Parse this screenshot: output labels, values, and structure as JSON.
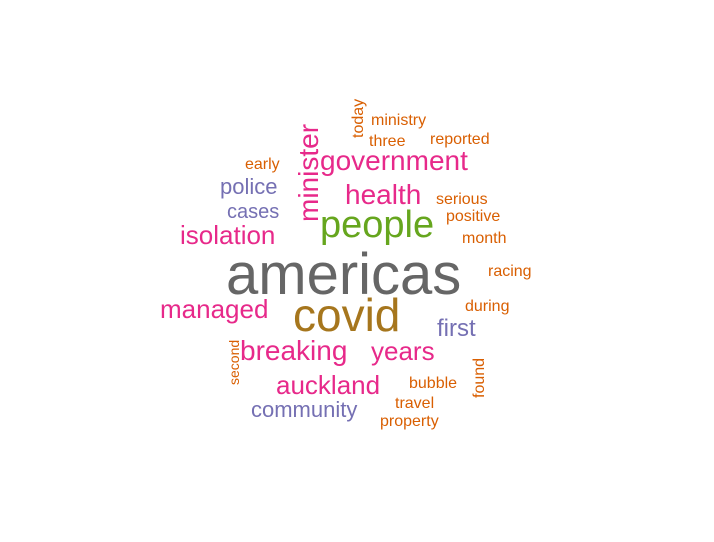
{
  "palette": {
    "gray": "#666666",
    "olive": "#a6761d",
    "green": "#66a61e",
    "magenta": "#e7298a",
    "purple": "#7570b3",
    "orange": "#d95f02"
  },
  "words": [
    {
      "text": "americas",
      "color": "gray"
    },
    {
      "text": "covid",
      "color": "olive"
    },
    {
      "text": "people",
      "color": "green"
    },
    {
      "text": "health",
      "color": "magenta"
    },
    {
      "text": "government",
      "color": "magenta"
    },
    {
      "text": "minister",
      "color": "magenta"
    },
    {
      "text": "isolation",
      "color": "magenta"
    },
    {
      "text": "managed",
      "color": "magenta"
    },
    {
      "text": "breaking",
      "color": "magenta"
    },
    {
      "text": "years",
      "color": "magenta"
    },
    {
      "text": "auckland",
      "color": "magenta"
    },
    {
      "text": "community",
      "color": "purple"
    },
    {
      "text": "first",
      "color": "purple"
    },
    {
      "text": "police",
      "color": "purple"
    },
    {
      "text": "cases",
      "color": "purple"
    },
    {
      "text": "early",
      "color": "orange"
    },
    {
      "text": "today",
      "color": "orange"
    },
    {
      "text": "ministry",
      "color": "orange"
    },
    {
      "text": "three",
      "color": "orange"
    },
    {
      "text": "reported",
      "color": "orange"
    },
    {
      "text": "serious",
      "color": "orange"
    },
    {
      "text": "positive",
      "color": "orange"
    },
    {
      "text": "month",
      "color": "orange"
    },
    {
      "text": "racing",
      "color": "orange"
    },
    {
      "text": "during",
      "color": "orange"
    },
    {
      "text": "second",
      "color": "orange"
    },
    {
      "text": "found",
      "color": "orange"
    },
    {
      "text": "bubble",
      "color": "orange"
    },
    {
      "text": "travel",
      "color": "orange"
    },
    {
      "text": "property",
      "color": "orange"
    }
  ]
}
